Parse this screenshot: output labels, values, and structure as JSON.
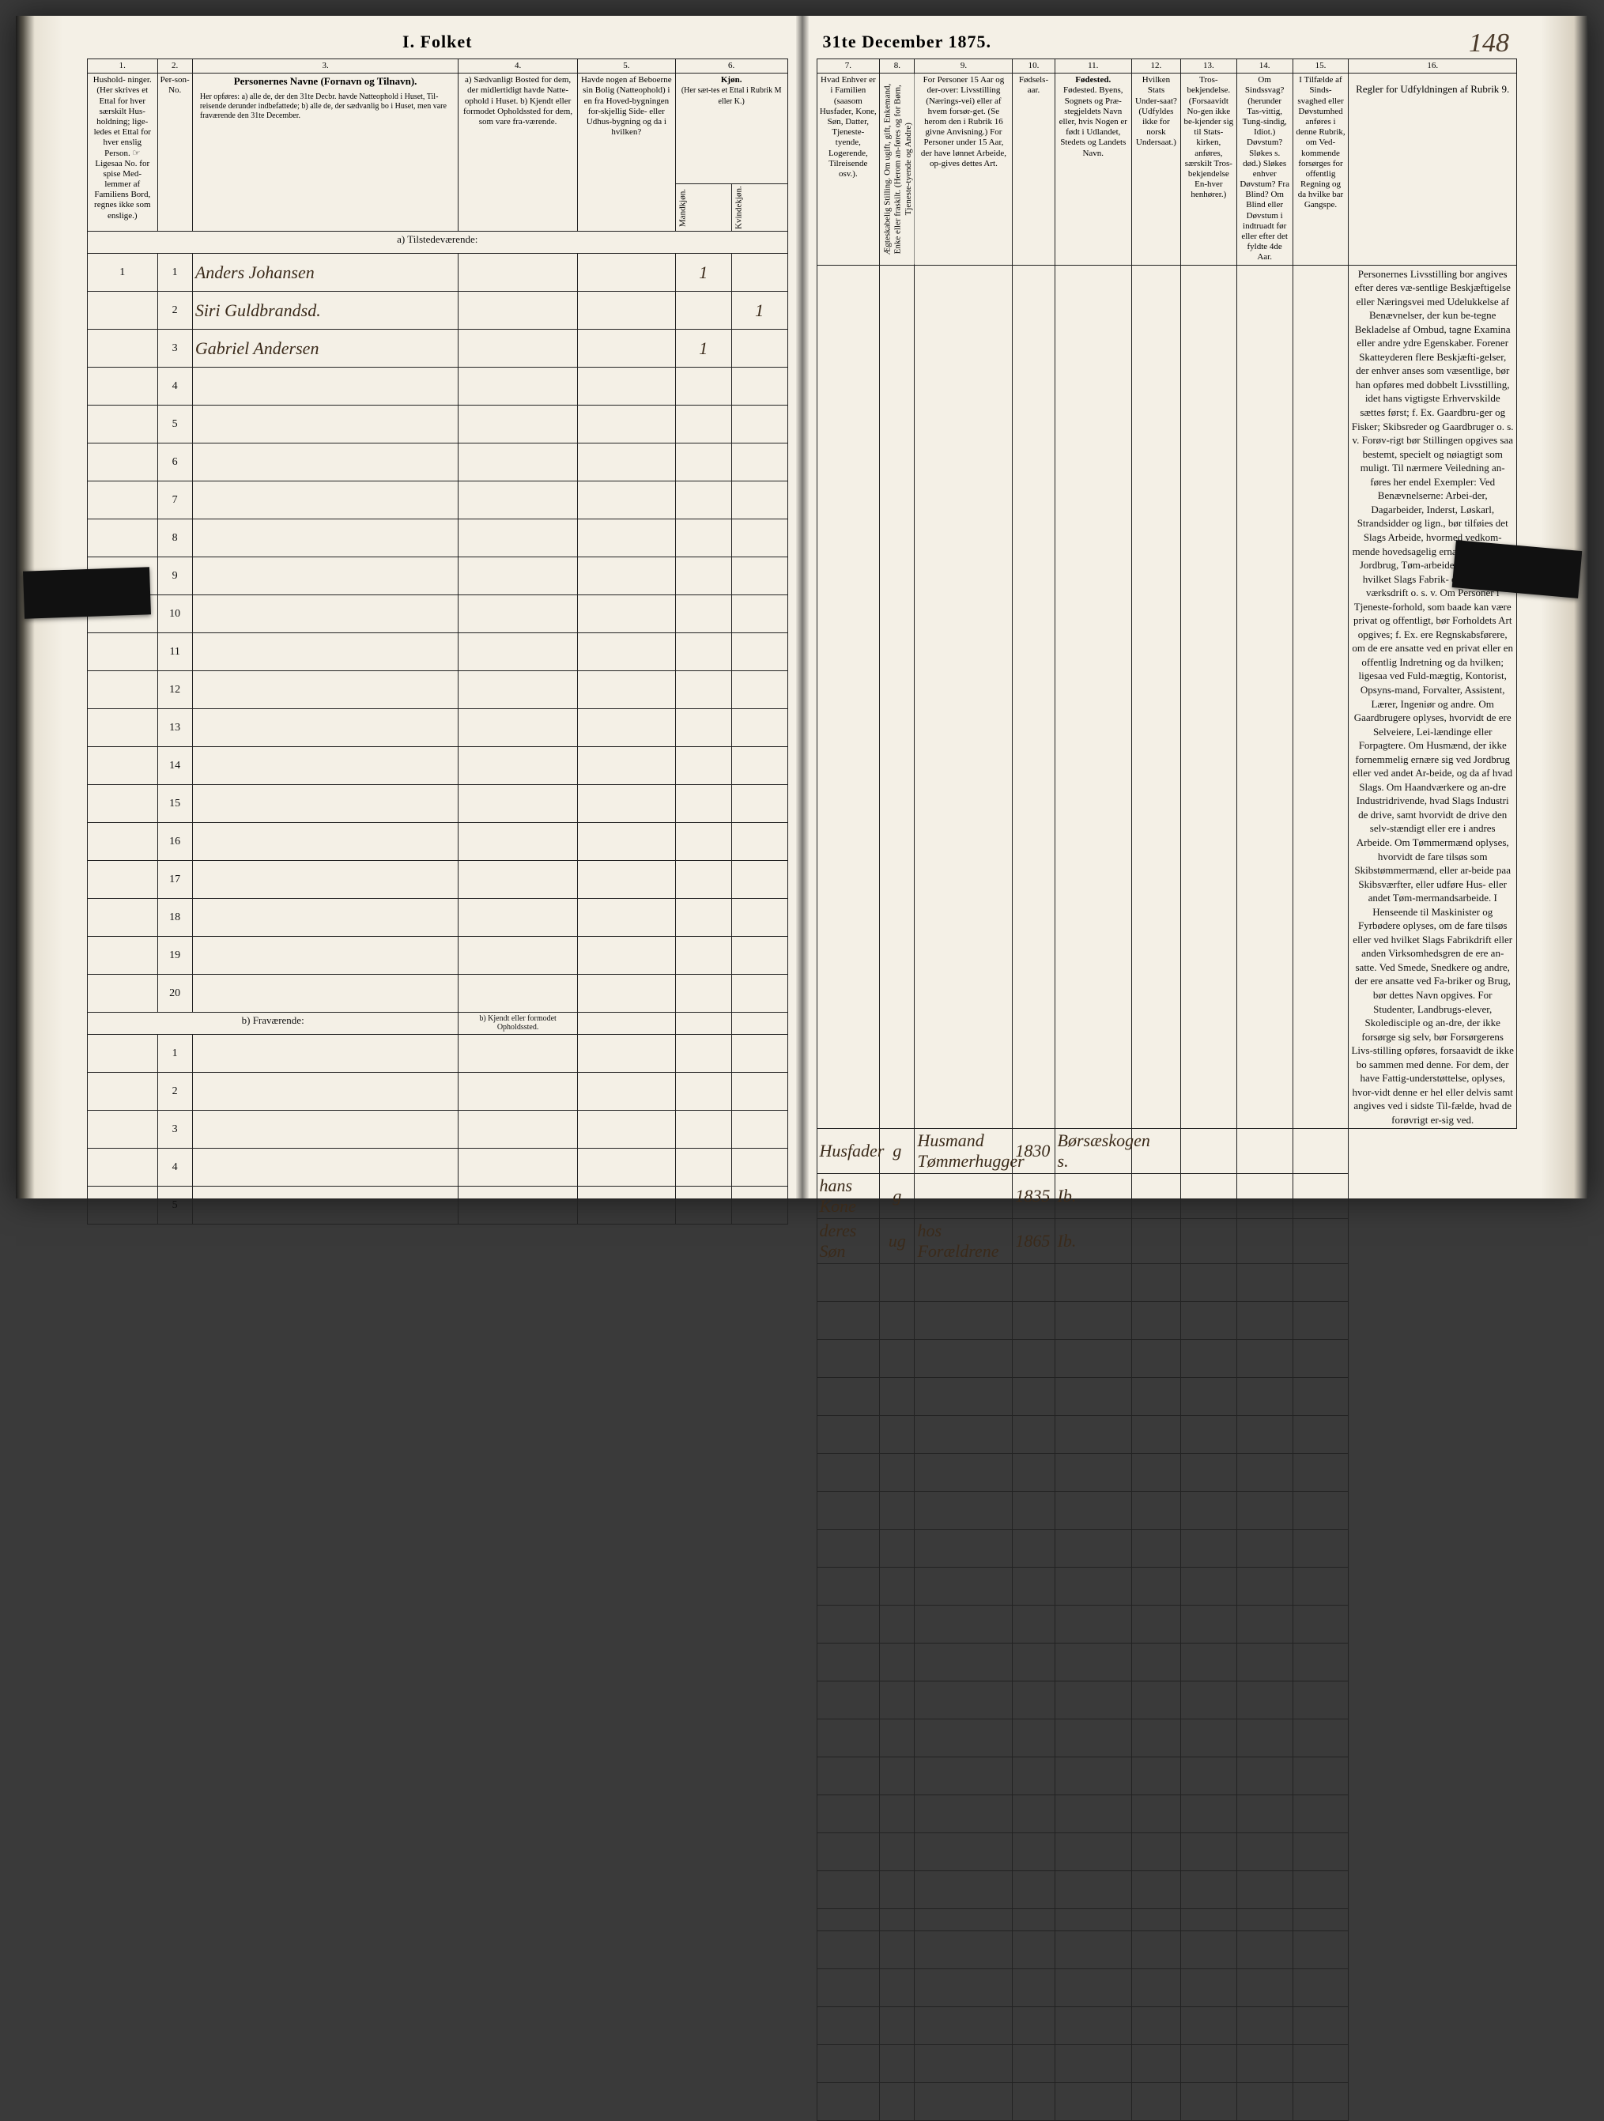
{
  "title_left": "I.  Folket",
  "title_right": "31te December 1875.",
  "page_number": "148",
  "left": {
    "col_nums": [
      "1.",
      "2.",
      "3.",
      "4.",
      "5.",
      "6."
    ],
    "headers": {
      "c1": "Hushold-\nninger.\n(Her skrives et Ettal for hver særskilt Hus-holdning; lige-ledes et Ettal for hver enslig Person.\n☞ Ligesaa No. for spise Med-lemmer af Familiens Bord, regnes ikke som enslige.)",
      "c2": "Per-son-No.",
      "c3_title": "Personernes Navne (Fornavn og Tilnavn).",
      "c3_body": "Her opføres:\na) alle de, der den 31te Decbr. havde Natteophold i Huset, Til-reisende derunder indbefattede;\nb) alle de, der sædvanlig bo i Huset, men vare fraværende den 31te December.",
      "c4": "a) Sædvanligt Bosted for dem, der midlertidigt havde Natte-ophold i Huset.\nb) Kjendt eller formodet Opholdssted for dem, som vare fra-værende.",
      "c5": "Havde nogen af Beboerne sin Bolig (Natteophold) i en fra Hoved-bygningen for-skjellig Side- eller Udhus-bygning og da i hvilken?",
      "c6_title": "Kjøn.",
      "c6_sub": "(Her sæt-tes et Ettal i Rubrik M eller K.)",
      "c6_m": "Mandkjøn.",
      "c6_k": "Kvindekjøn."
    },
    "section_a": "a)  Tilstedeværende:",
    "section_b": "b)  Fraværende:",
    "section_b_col4": "b) Kjendt eller formodet Opholdssted.",
    "rows_a": [
      {
        "n": "1",
        "hh": "1",
        "p": "1",
        "name": "Anders Johansen",
        "m": "1",
        "k": ""
      },
      {
        "n": "2",
        "hh": "",
        "p": "2",
        "name": "Siri Guldbrandsd.",
        "m": "",
        "k": "1"
      },
      {
        "n": "3",
        "hh": "",
        "p": "3",
        "name": "Gabriel Andersen",
        "m": "1",
        "k": ""
      },
      {
        "n": "4"
      },
      {
        "n": "5"
      },
      {
        "n": "6"
      },
      {
        "n": "7"
      },
      {
        "n": "8"
      },
      {
        "n": "9"
      },
      {
        "n": "10"
      },
      {
        "n": "11"
      },
      {
        "n": "12"
      },
      {
        "n": "13"
      },
      {
        "n": "14"
      },
      {
        "n": "15"
      },
      {
        "n": "16"
      },
      {
        "n": "17"
      },
      {
        "n": "18"
      },
      {
        "n": "19"
      },
      {
        "n": "20"
      }
    ],
    "rows_b": [
      {
        "n": "1"
      },
      {
        "n": "2"
      },
      {
        "n": "3"
      },
      {
        "n": "4"
      },
      {
        "n": "5"
      }
    ]
  },
  "right": {
    "col_nums": [
      "7.",
      "8.",
      "9.",
      "10.",
      "11.",
      "12.",
      "13.",
      "14.",
      "15.",
      "16."
    ],
    "headers": {
      "c7": "Hvad Enhver er i Familien\n(saasom Husfader, Kone, Søn, Datter, Tjeneste-tyende, Logerende, Tilreisende osv.).",
      "c8": "Ægteskabelig Stilling.\nOm ugift, gift, Enkemand, Enke eller fraskilt. (Herom an-føres og for Børn, Tjeneste-tyende og Andre)",
      "c9": "For Personer 15 Aar og der-over: Livsstilling (Nærings-vei) eller af hvem forsør-get. (Se herom den i Rubrik 16 givne Anvisning.)\nFor Personer under 15 Aar, der have lønnet Arbeide, op-gives dettes Art.",
      "c10": "Fødsels-aar.",
      "c11": "Fødested.\nByens, Sognets og Præ-stegjeldets Navn eller, hvis Nogen er født i Udlandet, Stedets og Landets Navn.",
      "c12": "Hvilken Stats Under-saat?\n(Udfyldes ikke for norsk Undersaat.)",
      "c13": "Tros-bekjendelse.\n(Forsaavidt No-gen ikke be-kjender sig til Stats-kirken, anføres, særskilt Tros-bekjendelse En-hver henhører.)",
      "c14": "Om Sindssvag?\n(herunder Tas-vittig, Tung-sindig, Idiot.)\nDøvstum?\nSløkes s. død.)\nSløkes enhver Døvstum?\nFra Blind?\nOm Blind eller Døvstum i indtruadt før eller efter det fyldte 4de Aar.",
      "c15": "I Tilfælde af Sinds-svaghed eller Døvstumhed anføres i denne Rubrik, om Ved-kommende forsørges for offentlig Regning og da hvilke bar Gangspe.",
      "c16_title": "Regler for Udfyldningen af Rubrik 9."
    },
    "rows": [
      {
        "c7": "Husfader",
        "c8": "g",
        "c9": "Husmand Tømmerhugger",
        "c10": "1830",
        "c11": "Børsæskogen s."
      },
      {
        "c7": "hans Kone",
        "c8": "g",
        "c9": "",
        "c10": "1835",
        "c11": "Ib."
      },
      {
        "c7": "deres Søn",
        "c8": "ug",
        "c9": "hos Forældrene",
        "c10": "1865",
        "c11": "Ib."
      },
      {},
      {},
      {},
      {},
      {},
      {},
      {},
      {},
      {},
      {},
      {},
      {},
      {},
      {},
      {},
      {},
      {}
    ],
    "rules_text": "Personernes Livsstilling bor angives efter deres væ-sentlige Beskjæftigelse eller Næringsvei med Udelukkelse af Benævnelser, der kun be-tegne Bekladelse af Ombud, tagne Examina eller andre ydre Egenskaber. Forener Skatteyderen flere Beskjæfti-gelser, der enhver anses som væsentlige, bør han opføres med dobbelt Livsstilling, idet hans vigtigste Erhvervskilde sættes først; f. Ex. Gaardbru-ger og Fisker; Skibsreder og Gaardbruger o. s. v. Forøv-rigt bør Stillingen opgives saa bestemt, specielt og nøiagtigt som muligt.\n  Til nærmere Veiledning an-føres her endel Exempler:\n  Ved Benævnelserne: Arbei-der, Dagarbeider, Inderst, Løskarl, Strandsidder og lign., bør tilføies det Slags Arbeide, hvormed vedkom-mende hovedsagelig ernærer sig; f. Ex. Jordbrug, Tøm-arbeide, Veiarbeide, hvilket Slags Fabrik- eller Haand-værksdrift o. s. v.\n  Om Personer i Tjeneste-forhold, som baade kan være privat og offentligt, bør Forholdets Art opgives; f. Ex. ere Regnskabsførere, om de ere ansatte ved en privat eller en offentlig Indretning og da hvilken; ligesaa ved Fuld-mægtig, Kontorist, Opsyns-mand, Forvalter, Assistent, Lærer, Ingeniør og andre.\n  Om Gaardbrugere oplyses, hvorvidt de ere Selveiere, Lei-lændinge eller Forpagtere.\n  Om Husmænd, der ikke fornemmelig ernære sig ved Jordbrug eller ved andet Ar-beide, og da af hvad Slags.\n  Om Haandværkere og an-dre Industridrivende, hvad Slags Industri de drive, samt hvorvidt de drive den selv-stændigt eller ere i andres Arbeide.\n  Om Tømmermænd oplyses, hvorvidt de fare tilsøs som Skibstømmermænd, eller ar-beide paa Skibsværfter, eller udføre Hus- eller andet Tøm-mermandsarbeide.\n  I Henseende til Maskinister og Fyrbødere oplyses, om de fare tilsøs eller ved hvilket Slags Fabrikdrift eller anden Virksomhedsgren de ere an-satte.\n  Ved Smede, Snedkere og andre, der ere ansatte ved Fa-briker og Brug, bør dettes Navn opgives.\n  For Studenter, Landbrugs-elever, Skoledisciple og an-dre, der ikke forsørge sig selv, bør Forsørgerens Livs-stilling opføres, forsaavidt de ikke bo sammen med denne.\n  For dem, der have Fattig-understøttelse, oplyses, hvor-vidt denne er hel eller delvis samt angives ved i sidste Til-fælde, hvad de forøvrigt er-sig ved."
  },
  "style": {
    "paper": "#f4f0e6",
    "ink": "#1a1a1a",
    "cursive": "#3a2a1a"
  }
}
